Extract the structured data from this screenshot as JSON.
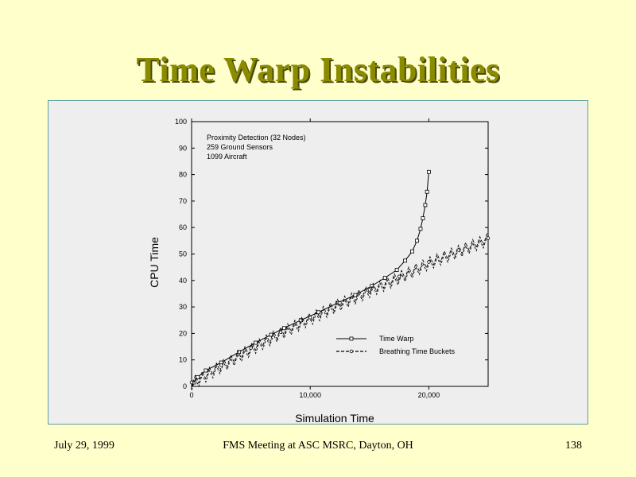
{
  "slide": {
    "title": "Time Warp Instabilities",
    "footer_date": "July 29,  1999",
    "footer_center": "FMS Meeting at ASC MSRC, Dayton, OH",
    "footer_page": "138"
  },
  "chart_data": {
    "type": "line",
    "title": "",
    "annotation": [
      "Proximity Detection (32 Nodes)",
      "259 Ground Sensors",
      "1099 Aircraft"
    ],
    "xlabel": "Simulation Time",
    "ylabel": "CPU Time",
    "xlim": [
      0,
      25000
    ],
    "ylim": [
      0,
      100
    ],
    "x_ticks": [
      0,
      10000,
      20000
    ],
    "x_tick_labels": [
      "0",
      "10,000",
      "20,000"
    ],
    "y_ticks": [
      0,
      10,
      20,
      30,
      40,
      50,
      60,
      70,
      80,
      90,
      100
    ],
    "y_tick_labels": [
      "0",
      "10",
      "20",
      "30",
      "40",
      "50",
      "60",
      "70",
      "80",
      "90",
      "100"
    ],
    "grid": false,
    "legend_position": "bottom-right",
    "series": [
      {
        "name": "Time Warp",
        "marker": "square",
        "line_style": "solid",
        "x": [
          0,
          200,
          500,
          1200,
          2500,
          4000,
          5400,
          6700,
          7800,
          9200,
          10700,
          12300,
          13800,
          15200,
          16300,
          17300,
          18000,
          18600,
          19000,
          19300,
          19500,
          19700,
          19850,
          20000
        ],
        "y": [
          0,
          1.5,
          3.5,
          6,
          9,
          13,
          16.5,
          19.5,
          22,
          25,
          28,
          31.5,
          34.5,
          38,
          41,
          44,
          47.5,
          51,
          55,
          59.5,
          63.5,
          68.5,
          73.5,
          81
        ]
      },
      {
        "name": "Breathing Time Buckets",
        "marker": "circle",
        "line_style": "dashed",
        "x": [
          0,
          2500,
          5000,
          7500,
          10000,
          12500,
          15000,
          17500,
          20000,
          22500,
          25000
        ],
        "y": [
          1.5,
          8,
          14.5,
          20.5,
          26,
          31.5,
          36.5,
          41.5,
          47,
          51.5,
          56
        ]
      }
    ]
  }
}
